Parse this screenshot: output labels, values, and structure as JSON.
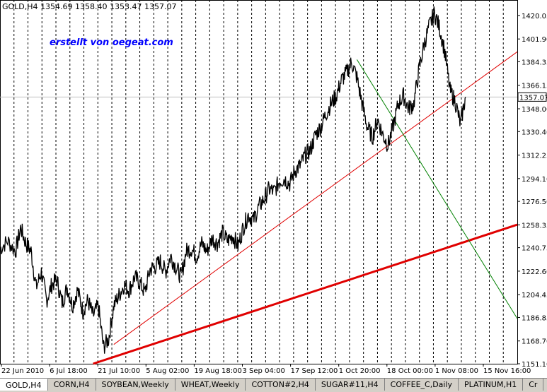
{
  "header": {
    "symbol": "GOLD,H4",
    "ohlc": "1354.69 1358.40 1353.47 1357.07"
  },
  "watermark": "erstellt von oegeat.com",
  "tabs": [
    {
      "label": "GOLD,H4",
      "active": true
    },
    {
      "label": "CORN,H4"
    },
    {
      "label": "SOYBEAN,Weekly"
    },
    {
      "label": "WHEAT,Weekly"
    },
    {
      "label": "COTTON#2,H4"
    },
    {
      "label": "SUGAR#11,H4"
    },
    {
      "label": "COFFEE_C,Daily"
    },
    {
      "label": "PLATINUM,H1"
    },
    {
      "label": "Cr"
    }
  ],
  "colors": {
    "background": "#ffffff",
    "price": "#000000",
    "trend_red": "#e00000",
    "trend_green": "#008000",
    "grid": "#000000"
  },
  "chart_data": {
    "type": "line",
    "symbol": "GOLD",
    "timeframe": "H4",
    "current_price": 1357.07,
    "ylim": [
      1151.1,
      1432.0
    ],
    "y_ticks": [
      1420.05,
      1401.9,
      1384.35,
      1366.15,
      1348.0,
      1330.4,
      1312.25,
      1294.1,
      1276.5,
      1258.35,
      1240.75,
      1222.6,
      1204.45,
      1186.85,
      1168.7,
      1151.1
    ],
    "x_labels": [
      "22 Jun 2010",
      "6 Jul 18:00",
      "21 Jul 10:00",
      "5 Aug 02:00",
      "19 Aug 18:00",
      "3 Sep 04:00",
      "17 Sep 12:00",
      "1 Oct 20:00",
      "18 Oct 00:00",
      "1 Nov 08:00",
      "15 Nov 16:00"
    ],
    "x_range": [
      0,
      100
    ],
    "grid": "vertical-dashed",
    "series": [
      {
        "values": [
          [
            0,
            1240
          ],
          [
            1.5,
            1246
          ],
          [
            3,
            1238
          ],
          [
            4,
            1256
          ],
          [
            5,
            1244
          ],
          [
            6,
            1238
          ],
          [
            7,
            1210
          ],
          [
            8,
            1222
          ],
          [
            9,
            1200
          ],
          [
            10,
            1212
          ],
          [
            11,
            1216
          ],
          [
            12,
            1198
          ],
          [
            13,
            1210
          ],
          [
            14,
            1196
          ],
          [
            15,
            1208
          ],
          [
            16,
            1192
          ],
          [
            17,
            1200
          ],
          [
            18,
            1188
          ],
          [
            19,
            1196
          ],
          [
            20,
            1164
          ],
          [
            21,
            1170
          ],
          [
            22,
            1196
          ],
          [
            23,
            1204
          ],
          [
            24,
            1212
          ],
          [
            25,
            1208
          ],
          [
            26,
            1218
          ],
          [
            27,
            1214
          ],
          [
            28,
            1206
          ],
          [
            29,
            1224
          ],
          [
            30,
            1226
          ],
          [
            31,
            1230
          ],
          [
            32,
            1222
          ],
          [
            33,
            1234
          ],
          [
            34,
            1226
          ],
          [
            35,
            1218
          ],
          [
            36,
            1238
          ],
          [
            37,
            1240
          ],
          [
            38,
            1234
          ],
          [
            39,
            1244
          ],
          [
            40,
            1238
          ],
          [
            41,
            1248
          ],
          [
            42,
            1244
          ],
          [
            43,
            1252
          ],
          [
            44,
            1246
          ],
          [
            45,
            1250
          ],
          [
            46,
            1242
          ],
          [
            47,
            1256
          ],
          [
            48,
            1266
          ],
          [
            49,
            1262
          ],
          [
            50,
            1272
          ],
          [
            51,
            1278
          ],
          [
            52,
            1286
          ],
          [
            53,
            1284
          ],
          [
            54,
            1292
          ],
          [
            55,
            1294
          ],
          [
            56,
            1290
          ],
          [
            57,
            1300
          ],
          [
            58,
            1304
          ],
          [
            59,
            1312
          ],
          [
            60,
            1316
          ],
          [
            61,
            1328
          ],
          [
            62,
            1334
          ],
          [
            63,
            1344
          ],
          [
            64,
            1352
          ],
          [
            65,
            1358
          ],
          [
            66,
            1370
          ],
          [
            67,
            1376
          ],
          [
            68,
            1384
          ],
          [
            69,
            1372
          ],
          [
            70,
            1352
          ],
          [
            71,
            1334
          ],
          [
            72,
            1326
          ],
          [
            73,
            1340
          ],
          [
            74,
            1328
          ],
          [
            75,
            1320
          ],
          [
            76,
            1334
          ],
          [
            77,
            1352
          ],
          [
            78,
            1358
          ],
          [
            79,
            1348
          ],
          [
            80,
            1352
          ],
          [
            81,
            1378
          ],
          [
            82,
            1398
          ],
          [
            83,
            1412
          ],
          [
            84,
            1422
          ],
          [
            85,
            1410
          ],
          [
            86,
            1392
          ],
          [
            87,
            1362
          ],
          [
            88,
            1354
          ],
          [
            89,
            1336
          ],
          [
            90,
            1357.07
          ]
        ]
      }
    ],
    "trendlines": [
      {
        "color": "trend_red",
        "width": "thin",
        "points": [
          [
            22,
            1166
          ],
          [
            100,
            1392
          ]
        ]
      },
      {
        "color": "trend_red",
        "width": "thick",
        "points": [
          [
            18,
            1151.1
          ],
          [
            100,
            1258.5
          ]
        ]
      },
      {
        "color": "trend_green",
        "width": "thin",
        "points": [
          [
            69,
            1386
          ],
          [
            100,
            1186
          ]
        ]
      }
    ],
    "horizontal_lines": [
      {
        "value": 1357.07,
        "color": "#c0c0c0"
      }
    ]
  }
}
